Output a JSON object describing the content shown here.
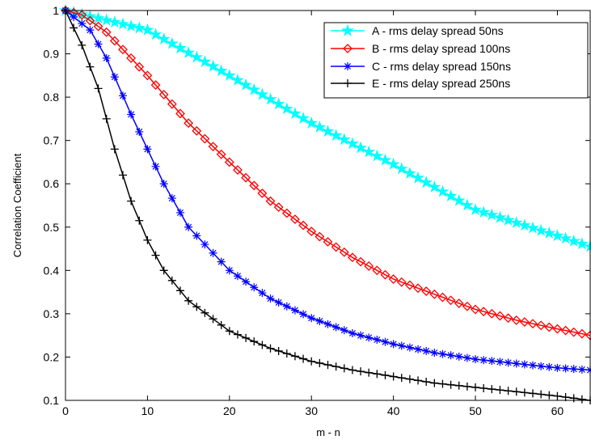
{
  "chart_data": {
    "type": "line",
    "title": "",
    "xlabel": "m - n",
    "ylabel": "Correlation Coefficient",
    "xlim": [
      0,
      64
    ],
    "ylim": [
      0.1,
      1
    ],
    "xticks": [
      0,
      10,
      20,
      30,
      40,
      50,
      60
    ],
    "yticks": [
      0.1,
      0.2,
      0.3,
      0.4,
      0.5,
      0.6,
      0.7,
      0.8,
      0.9,
      1
    ],
    "xtick_labels": [
      "0",
      "10",
      "20",
      "30",
      "40",
      "50",
      "60"
    ],
    "ytick_labels": [
      "0.1",
      "0.2",
      "0.3",
      "0.4",
      "0.5",
      "0.6",
      "0.7",
      "0.8",
      "0.9",
      "1"
    ],
    "grid": false,
    "legend_position": "top-right",
    "x_range": {
      "start": 0,
      "end": 64,
      "step": 1
    },
    "series": [
      {
        "name": "A - rms delay spread 50ns",
        "color": "#00ffff",
        "marker": "star-icon",
        "key_values": [
          [
            0,
            1.0
          ],
          [
            10,
            0.955
          ],
          [
            20,
            0.85
          ],
          [
            30,
            0.74
          ],
          [
            40,
            0.645
          ],
          [
            50,
            0.54
          ],
          [
            60,
            0.48
          ],
          [
            64,
            0.455
          ]
        ]
      },
      {
        "name": "B - rms delay spread 100ns",
        "color": "#ff0000",
        "marker": "diamond-icon",
        "key_values": [
          [
            0,
            1.0
          ],
          [
            2,
            0.99
          ],
          [
            5,
            0.95
          ],
          [
            10,
            0.85
          ],
          [
            15,
            0.74
          ],
          [
            20,
            0.65
          ],
          [
            25,
            0.56
          ],
          [
            30,
            0.49
          ],
          [
            35,
            0.43
          ],
          [
            40,
            0.38
          ],
          [
            45,
            0.345
          ],
          [
            50,
            0.31
          ],
          [
            55,
            0.285
          ],
          [
            60,
            0.265
          ],
          [
            64,
            0.25
          ]
        ]
      },
      {
        "name": "C - rms delay spread 150ns",
        "color": "#0000ff",
        "marker": "asterisk-icon",
        "key_values": [
          [
            0,
            1.0
          ],
          [
            3,
            0.955
          ],
          [
            5,
            0.89
          ],
          [
            8,
            0.76
          ],
          [
            10,
            0.68
          ],
          [
            12,
            0.6
          ],
          [
            15,
            0.5
          ],
          [
            20,
            0.4
          ],
          [
            25,
            0.335
          ],
          [
            30,
            0.29
          ],
          [
            35,
            0.255
          ],
          [
            40,
            0.23
          ],
          [
            45,
            0.21
          ],
          [
            50,
            0.195
          ],
          [
            55,
            0.185
          ],
          [
            60,
            0.175
          ],
          [
            64,
            0.17
          ]
        ]
      },
      {
        "name": "E - rms delay spread 250ns",
        "color": "#000000",
        "marker": "plus-icon",
        "key_values": [
          [
            0,
            1.0
          ],
          [
            2,
            0.92
          ],
          [
            4,
            0.82
          ],
          [
            5,
            0.75
          ],
          [
            6,
            0.68
          ],
          [
            8,
            0.56
          ],
          [
            10,
            0.47
          ],
          [
            12,
            0.4
          ],
          [
            15,
            0.33
          ],
          [
            20,
            0.26
          ],
          [
            25,
            0.22
          ],
          [
            30,
            0.19
          ],
          [
            35,
            0.17
          ],
          [
            40,
            0.155
          ],
          [
            45,
            0.14
          ],
          [
            50,
            0.13
          ],
          [
            55,
            0.12
          ],
          [
            60,
            0.11
          ],
          [
            64,
            0.1
          ]
        ]
      }
    ]
  }
}
